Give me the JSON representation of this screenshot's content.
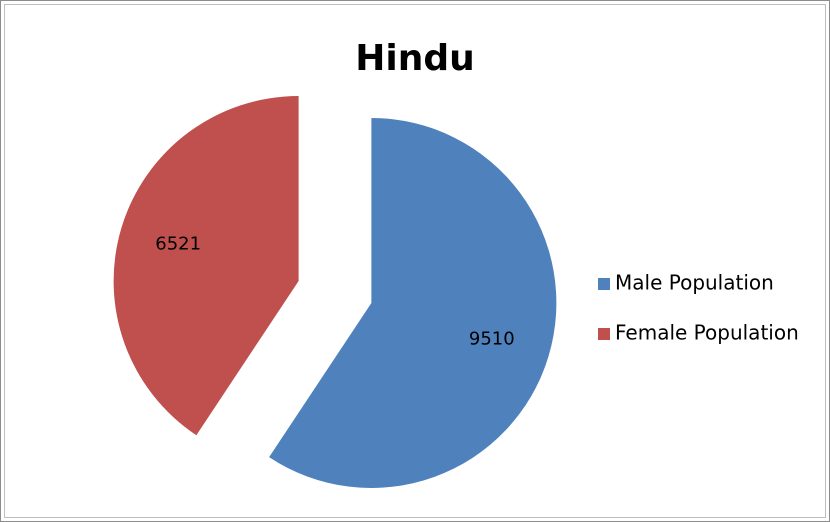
{
  "chart_data": {
    "type": "pie",
    "title": "Hindu",
    "categories": [
      "Male Population",
      "Female Population"
    ],
    "values": [
      9510,
      6521
    ],
    "colors": [
      "#4f81bd",
      "#c0504d"
    ],
    "legend": "right",
    "exploded": true
  }
}
